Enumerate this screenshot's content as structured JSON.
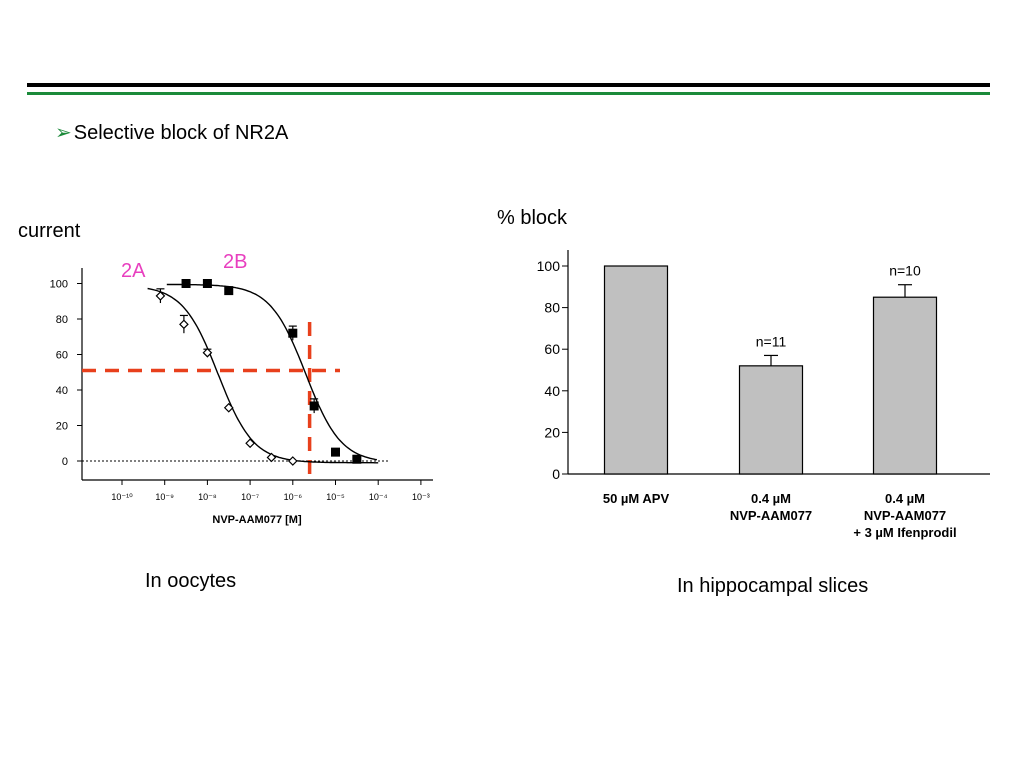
{
  "header": {
    "bullet_text": "Selective block of NR2A",
    "rule_color": "#1b8a3a"
  },
  "labels": {
    "current": "current",
    "percent_block": "% block",
    "oocytes": "In oocytes",
    "hippocampal": "In hippocampal slices"
  },
  "chart_data": [
    {
      "type": "line",
      "subtype": "dose-response",
      "xlabel": "NVP-AAM077 [M]",
      "ylabel": "current",
      "x_scale": "log",
      "x_ticks": [
        "10⁻¹⁰",
        "10⁻⁹",
        "10⁻⁸",
        "10⁻⁷",
        "10⁻⁶",
        "10⁻⁵",
        "10⁻⁴",
        "10⁻³"
      ],
      "x_tick_exponents": [
        -10,
        -9,
        -8,
        -7,
        -6,
        -5,
        -4,
        -3
      ],
      "y_ticks": [
        0,
        20,
        40,
        60,
        80,
        100
      ],
      "ylim": [
        -10,
        110
      ],
      "series": [
        {
          "name": "2A",
          "color": "#e83fbf",
          "marker": "open-diamond",
          "x_log": [
            -9.1,
            -8.55,
            -8.0,
            -7.5,
            -7.0,
            -6.5,
            -6.0
          ],
          "y": [
            93,
            77,
            61,
            30,
            10,
            2,
            0
          ],
          "yerr": [
            4,
            5,
            2,
            0,
            0,
            0,
            0
          ],
          "ic50_log": -7.75
        },
        {
          "name": "2B",
          "color": "#e83fbf",
          "marker": "filled-square",
          "x_log": [
            -8.5,
            -8.0,
            -7.5,
            -6.0,
            -5.5,
            -5.0,
            -4.5
          ],
          "y": [
            100,
            100,
            96,
            72,
            31,
            5,
            1
          ],
          "yerr": [
            0,
            0,
            0,
            4,
            4,
            0,
            0
          ],
          "ic50_log": -5.7
        }
      ],
      "annotations": {
        "half_block_y": 51,
        "dashed_color": "#e8401c"
      }
    },
    {
      "type": "bar",
      "ylabel": "% block",
      "ylim": [
        0,
        100
      ],
      "y_ticks": [
        0,
        20,
        40,
        60,
        80,
        100
      ],
      "categories": [
        [
          "50 µM APV"
        ],
        [
          "0.4 µM",
          "NVP-AAM077"
        ],
        [
          "0.4 µM",
          "NVP-AAM077",
          "+ 3 µM Ifenprodil"
        ]
      ],
      "values": [
        100,
        52,
        85
      ],
      "yerr": [
        0,
        5,
        6
      ],
      "n_labels": [
        "",
        "n=11",
        "n=10"
      ],
      "bar_color": "#c0c0c0"
    }
  ]
}
